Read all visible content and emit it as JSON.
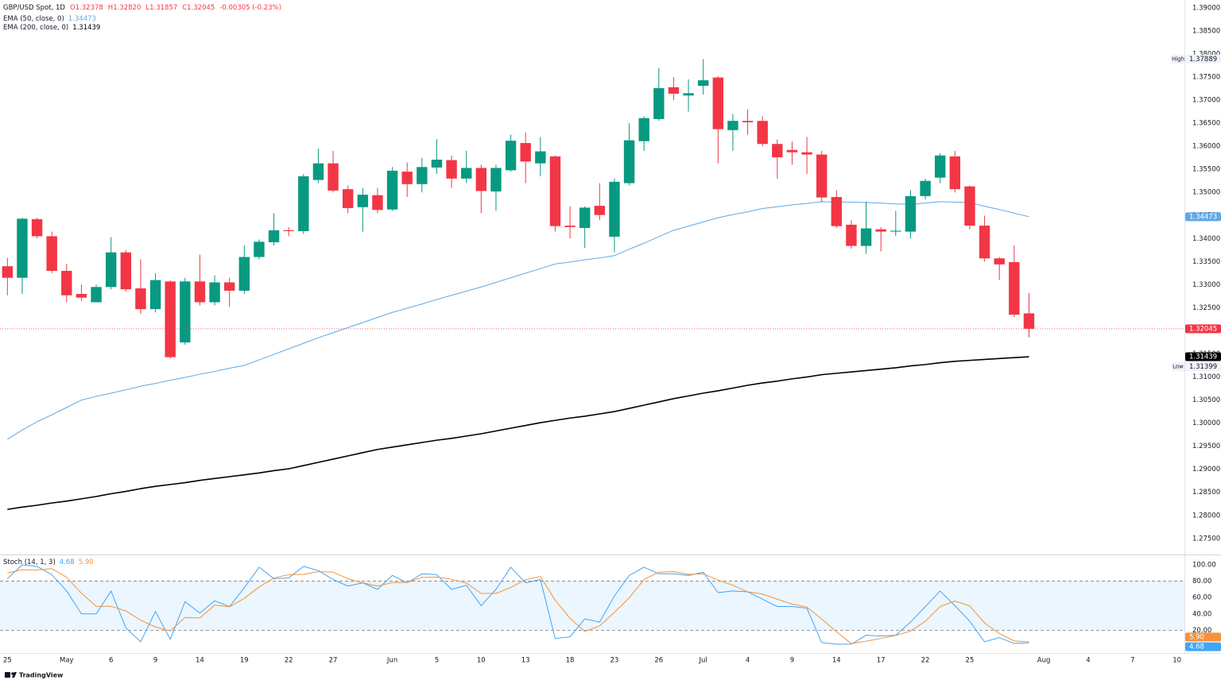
{
  "brand": "TradingView",
  "chart_data": [
    {
      "type": "candlestick",
      "title": "GBP/USD Spot, 1D",
      "ohlc_legend": [
        "O1.32378",
        "H1.32820",
        "L1.31857",
        "C1.32045",
        "-0.00305 (-0.23%)"
      ],
      "categories": [
        "25",
        null,
        null,
        null,
        "May",
        null,
        null,
        "6",
        null,
        null,
        "9",
        null,
        null,
        "14",
        null,
        null,
        "19",
        null,
        null,
        "22",
        null,
        null,
        "27",
        null,
        null,
        null,
        "Jun",
        null,
        null,
        "5",
        null,
        null,
        "10",
        null,
        null,
        "13",
        null,
        null,
        "18",
        null,
        null,
        "23",
        null,
        null,
        "26",
        null,
        null,
        "Jul",
        null,
        null,
        "4",
        null,
        null,
        "9",
        null,
        null,
        "14",
        null,
        null,
        "17",
        null,
        null,
        "22",
        null,
        null,
        "25",
        null,
        null,
        null,
        null,
        "Aug",
        null,
        null,
        "4",
        null,
        null,
        "7",
        null,
        null,
        "10"
      ],
      "open": [
        1.334,
        1.3315,
        1.3442,
        1.3405,
        1.333,
        1.328,
        1.3262,
        1.3295,
        1.337,
        1.3292,
        1.3247,
        1.3307,
        1.3175,
        1.3307,
        1.3262,
        1.3305,
        1.3287,
        1.336,
        1.3392,
        1.3418,
        1.3416,
        1.3527,
        1.3563,
        1.3507,
        1.3468,
        1.3494,
        1.3463,
        1.3545,
        1.3518,
        1.3554,
        1.357,
        1.353,
        1.3553,
        1.3502,
        1.3548,
        1.3607,
        1.3563,
        1.3578,
        1.3428,
        1.3423,
        1.3471,
        1.3404,
        1.352,
        1.3611,
        1.3659,
        1.3728,
        1.371,
        1.3731,
        1.3749,
        1.3635,
        1.3655,
        1.3655,
        1.3605,
        1.3592,
        1.3587,
        1.3582,
        1.349,
        1.343,
        1.3384,
        1.342,
        1.3415,
        1.3415,
        1.3492,
        1.3532,
        1.3578,
        1.3513,
        1.3428,
        1.3357,
        1.3349,
        1.32378,
        null,
        null,
        null,
        null,
        null,
        null,
        null,
        null,
        null,
        null
      ],
      "high": [
        1.3358,
        1.3445,
        1.3445,
        1.3415,
        1.3345,
        1.33,
        1.33,
        1.3403,
        1.3375,
        1.3355,
        1.3325,
        1.331,
        1.3315,
        1.3365,
        1.332,
        1.3315,
        1.3385,
        1.3398,
        1.3455,
        1.3425,
        1.354,
        1.3595,
        1.359,
        1.3515,
        1.351,
        1.351,
        1.3555,
        1.3565,
        1.3575,
        1.3615,
        1.358,
        1.359,
        1.356,
        1.356,
        1.3625,
        1.363,
        1.362,
        1.358,
        1.347,
        1.347,
        1.352,
        1.353,
        1.365,
        1.3665,
        1.377,
        1.375,
        1.3745,
        1.37889,
        1.3752,
        1.367,
        1.368,
        1.3665,
        1.3615,
        1.361,
        1.362,
        1.359,
        1.3505,
        1.344,
        1.348,
        1.3425,
        1.346,
        1.3505,
        1.353,
        1.3585,
        1.359,
        1.3515,
        1.345,
        1.336,
        1.3385,
        1.3282,
        null,
        null,
        null,
        null,
        null,
        null,
        null,
        null,
        null,
        null
      ],
      "low": [
        1.3277,
        1.328,
        1.34,
        1.3325,
        1.3262,
        1.3265,
        1.3262,
        1.329,
        1.3285,
        1.3237,
        1.324,
        1.31399,
        1.317,
        1.3255,
        1.3255,
        1.3252,
        1.328,
        1.3355,
        1.3385,
        1.3405,
        1.341,
        1.352,
        1.35,
        1.3455,
        1.3415,
        1.3455,
        1.346,
        1.349,
        1.35,
        1.354,
        1.351,
        1.352,
        1.3455,
        1.346,
        1.3545,
        1.352,
        1.3535,
        1.3415,
        1.34,
        1.338,
        1.344,
        1.337,
        1.3515,
        1.359,
        1.3655,
        1.37,
        1.3675,
        1.3712,
        1.3563,
        1.359,
        1.3625,
        1.36,
        1.353,
        1.356,
        1.354,
        1.348,
        1.3423,
        1.3378,
        1.3367,
        1.3372,
        1.3405,
        1.34,
        1.3485,
        1.352,
        1.35,
        1.342,
        1.335,
        1.331,
        1.323,
        1.31857,
        null,
        null,
        null,
        null,
        null,
        null,
        null,
        null,
        null,
        null
      ],
      "close": [
        1.3315,
        1.3443,
        1.3405,
        1.333,
        1.3277,
        1.3272,
        1.3295,
        1.337,
        1.329,
        1.3247,
        1.331,
        1.3143,
        1.3307,
        1.3262,
        1.3305,
        1.3287,
        1.336,
        1.3393,
        1.3418,
        1.3416,
        1.3535,
        1.3563,
        1.3504,
        1.3466,
        1.3495,
        1.3462,
        1.3547,
        1.3518,
        1.3555,
        1.3571,
        1.353,
        1.3553,
        1.3503,
        1.3553,
        1.3612,
        1.3567,
        1.3589,
        1.3427,
        1.3425,
        1.3467,
        1.3451,
        1.3523,
        1.3613,
        1.3661,
        1.3726,
        1.3714,
        1.3715,
        1.3743,
        1.3637,
        1.3655,
        1.3652,
        1.3605,
        1.3576,
        1.3587,
        1.3582,
        1.3489,
        1.3427,
        1.3384,
        1.3422,
        1.3415,
        1.3417,
        1.3492,
        1.3525,
        1.358,
        1.3507,
        1.3428,
        1.3357,
        1.3344,
        1.3235,
        1.32045,
        null,
        null,
        null,
        null,
        null,
        null,
        null,
        null,
        null,
        null
      ],
      "up_color": "#089981",
      "down_color": "#f23645",
      "series": [
        {
          "name": "EMA (50, close, 0)",
          "color": "#5ea9e8",
          "values": [
            1.2965,
            1.2985,
            1.3003,
            1.3018,
            1.3034,
            1.305,
            1.3058,
            1.3065,
            1.3072,
            1.308,
            1.3086,
            1.3093,
            1.3099,
            1.3106,
            1.3112,
            1.3119,
            1.3125,
            1.3137,
            1.3149,
            1.3161,
            1.3173,
            1.3185,
            1.3196,
            1.3207,
            1.3218,
            1.3229,
            1.324,
            1.3249,
            1.3258,
            1.3268,
            1.3277,
            1.3286,
            1.3295,
            1.3305,
            1.3315,
            1.3325,
            1.3335,
            1.3345,
            1.3349,
            1.3354,
            1.3358,
            1.3363,
            1.3377,
            1.339,
            1.3404,
            1.3418,
            1.3427,
            1.3436,
            1.3445,
            1.3452,
            1.3458,
            1.3465,
            1.3469,
            1.3473,
            1.3476,
            1.348,
            1.3479,
            1.3479,
            1.3478,
            1.3477,
            1.3475,
            1.3474,
            1.3477,
            1.348,
            1.3479,
            1.3478,
            1.347,
            1.3463,
            1.3455,
            1.34473,
            null,
            null,
            null,
            null,
            null,
            null,
            null,
            null,
            null,
            null
          ]
        },
        {
          "name": "EMA (200, close, 0)",
          "color": "#000000",
          "values": [
            1.2813,
            1.2818,
            1.2822,
            1.2827,
            1.2831,
            1.2836,
            1.2841,
            1.2847,
            1.2852,
            1.2858,
            1.2863,
            1.2867,
            1.2871,
            1.2876,
            1.288,
            1.2884,
            1.2888,
            1.2892,
            1.2897,
            1.2901,
            1.2908,
            1.2915,
            1.2922,
            1.2929,
            1.2936,
            1.2943,
            1.2948,
            1.2953,
            1.2958,
            1.2963,
            1.2967,
            1.2972,
            1.2977,
            1.2983,
            1.2989,
            1.2995,
            1.3001,
            1.3006,
            1.3011,
            1.3015,
            1.302,
            1.3025,
            1.3032,
            1.3039,
            1.3046,
            1.3053,
            1.3059,
            1.3065,
            1.307,
            1.3076,
            1.3082,
            1.3087,
            1.3091,
            1.3096,
            1.31,
            1.3105,
            1.3108,
            1.3111,
            1.3114,
            1.3117,
            1.312,
            1.3124,
            1.3127,
            1.3131,
            1.3134,
            1.3136,
            1.3138,
            1.314,
            1.3142,
            1.31439,
            null,
            null,
            null,
            null,
            null,
            null,
            null,
            null,
            null,
            null
          ]
        }
      ],
      "high_label": "High",
      "low_label": "Low",
      "price_line": true,
      "grid": false,
      "ylim": [
        1.2717,
        1.3917
      ],
      "yticks": [
        {
          "value": 1.275,
          "label": "1.27500"
        },
        {
          "value": 1.28,
          "label": "1.28000"
        },
        {
          "value": 1.285,
          "label": "1.28500"
        },
        {
          "value": 1.29,
          "label": "1.29000"
        },
        {
          "value": 1.295,
          "label": "1.29500"
        },
        {
          "value": 1.3,
          "label": "1.30000"
        },
        {
          "value": 1.305,
          "label": "1.30500"
        },
        {
          "value": 1.31,
          "label": "1.31000"
        },
        {
          "value": 1.315,
          "label": "1.31500"
        },
        {
          "value": 1.32,
          "label": "1.32000"
        },
        {
          "value": 1.325,
          "label": "1.32500"
        },
        {
          "value": 1.33,
          "label": "1.33000"
        },
        {
          "value": 1.335,
          "label": "1.33500"
        },
        {
          "value": 1.34,
          "label": "1.34000"
        },
        {
          "value": 1.345,
          "label": "1.34500"
        },
        {
          "value": 1.35,
          "label": "1.35000"
        },
        {
          "value": 1.355,
          "label": "1.35500"
        },
        {
          "value": 1.36,
          "label": "1.36000"
        },
        {
          "value": 1.365,
          "label": "1.36500"
        },
        {
          "value": 1.37,
          "label": "1.37000"
        },
        {
          "value": 1.375,
          "label": "1.37500"
        },
        {
          "value": 1.38,
          "label": "1.38000"
        },
        {
          "value": 1.385,
          "label": "1.38500"
        },
        {
          "value": 1.39,
          "label": "1.39000"
        }
      ]
    },
    {
      "type": "line",
      "title": "Stoch (14, 1, 3)",
      "series": [
        {
          "name": "%K",
          "color": "#42a5f5",
          "values": [
            83,
            100,
            98,
            88,
            68,
            40,
            40,
            68,
            23,
            6,
            43,
            9,
            55,
            41,
            56,
            49,
            72,
            97,
            83,
            84,
            98,
            93,
            82,
            74,
            78,
            70,
            87,
            78,
            89,
            88,
            70,
            75,
            50,
            70,
            97,
            78,
            82,
            10,
            12,
            34,
            30,
            62,
            87,
            97,
            89,
            89,
            87,
            91,
            66,
            68,
            67,
            58,
            49,
            49,
            47,
            5,
            3,
            3,
            14,
            13,
            14,
            30,
            49,
            68,
            50,
            31,
            6,
            11,
            4,
            4.68,
            null,
            null,
            null,
            null,
            null,
            null,
            null,
            null,
            null,
            null
          ]
        },
        {
          "name": "%D",
          "color": "#f7923a",
          "values": [
            90,
            94,
            93.7,
            95.3,
            84.7,
            65.3,
            49.3,
            49.3,
            43.7,
            32.3,
            24,
            19.3,
            35.7,
            35,
            50.7,
            48.7,
            59,
            72.7,
            84,
            88,
            88.3,
            91.7,
            91,
            83,
            78,
            74,
            78.3,
            78.3,
            84.7,
            85,
            82.3,
            77.7,
            65,
            65,
            72.3,
            81.7,
            85.7,
            56.7,
            34.7,
            18.7,
            25.3,
            42,
            59.7,
            82,
            91,
            91.7,
            88.3,
            89,
            81.3,
            75,
            67,
            64.3,
            58,
            52,
            48.3,
            33.7,
            18.3,
            3.7,
            6.7,
            10,
            13.7,
            19,
            31,
            49,
            55.7,
            49.7,
            29,
            16,
            7,
            5.9,
            null,
            null,
            null,
            null,
            null,
            null,
            null,
            null,
            null,
            null
          ],
          "value_labels": [
            null,
            null,
            null,
            null,
            null,
            null,
            null,
            null,
            null,
            null,
            null,
            null,
            null,
            null,
            null,
            null,
            null,
            null,
            null,
            null,
            null,
            null,
            null,
            null,
            null,
            null,
            null,
            null,
            null,
            null,
            null,
            null,
            null,
            null,
            null,
            null,
            null,
            null,
            null,
            null,
            null,
            null,
            null,
            null,
            null,
            null,
            null,
            null,
            null,
            null,
            null,
            null,
            null,
            null,
            null,
            null,
            null,
            null,
            null,
            null,
            null,
            null,
            null,
            null,
            null,
            null,
            null,
            null,
            null,
            "5.90",
            null,
            null,
            null,
            null,
            null,
            null,
            null,
            null,
            null,
            null
          ]
        }
      ],
      "band": [
        20,
        80
      ],
      "band_color": "#2196f3",
      "grid": false,
      "ylim": [
        -6.8,
        111.6
      ],
      "yticks": [
        {
          "value": 0,
          "label": "0.00"
        },
        {
          "value": 20,
          "label": "20.00"
        },
        {
          "value": 40,
          "label": "40.00"
        },
        {
          "value": 60,
          "label": "60.00"
        },
        {
          "value": 80,
          "label": "80.00"
        },
        {
          "value": 100,
          "label": "100.00"
        }
      ]
    }
  ]
}
